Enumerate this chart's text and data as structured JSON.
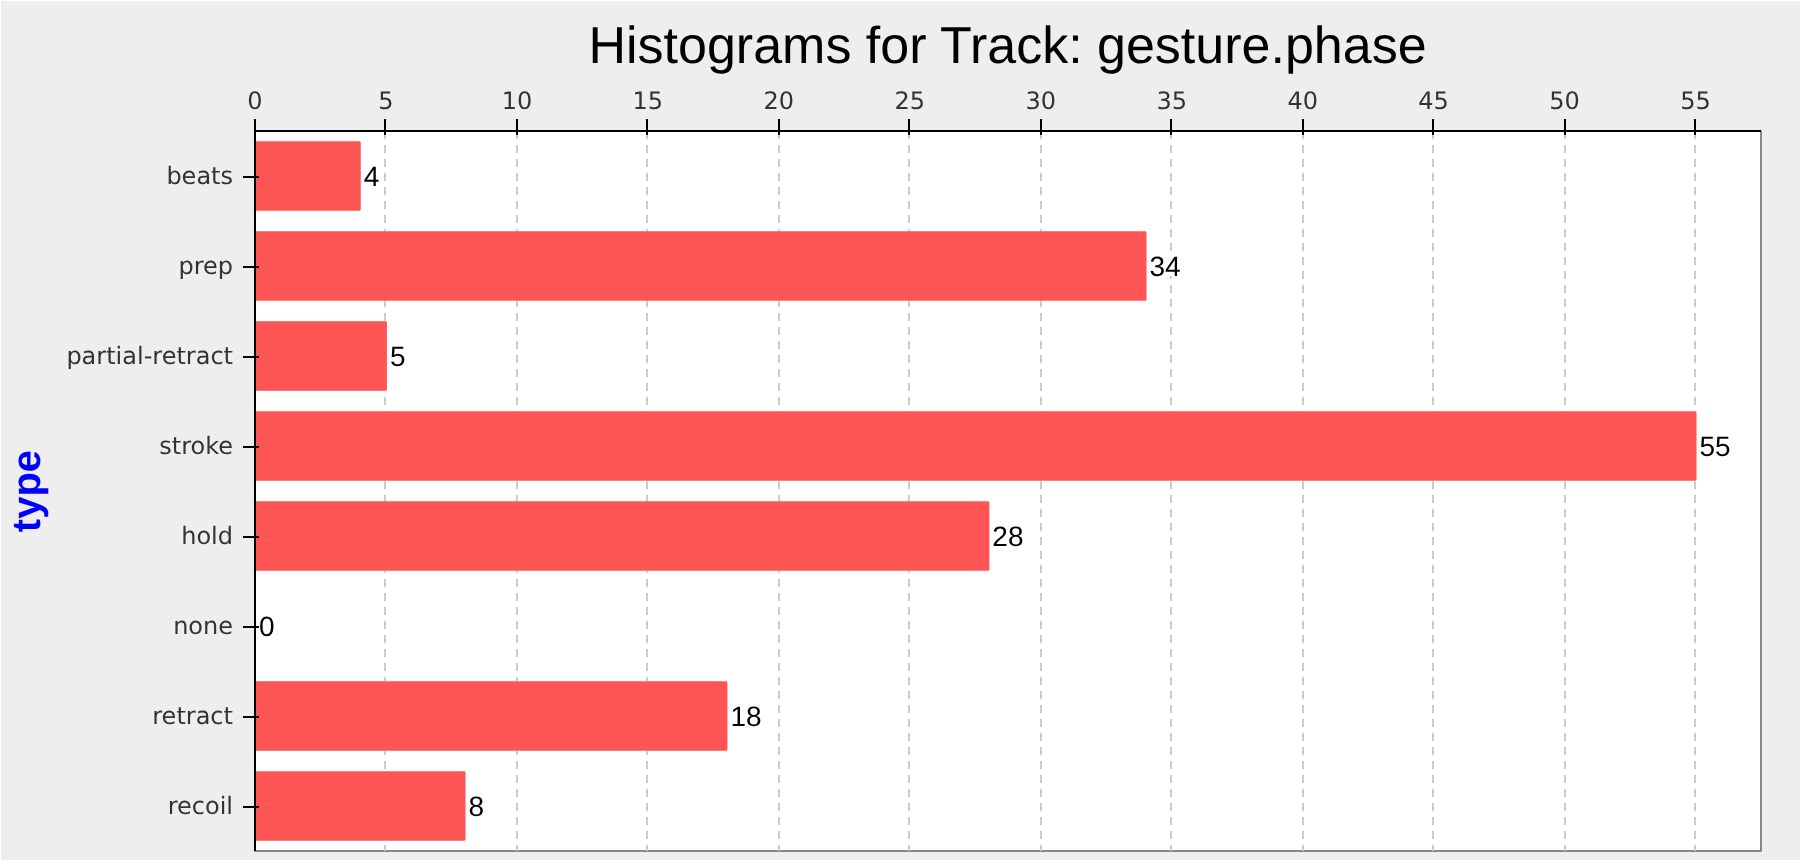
{
  "chart_data": {
    "type": "bar",
    "orientation": "horizontal",
    "title": "Histograms for Track: gesture.phase",
    "ylabel": "type",
    "categories": [
      "beats",
      "prep",
      "partial-retract",
      "stroke",
      "hold",
      "none",
      "retract",
      "recoil"
    ],
    "values": [
      4,
      34,
      5,
      55,
      28,
      0,
      18,
      8
    ],
    "color": "#ff5555",
    "xlim": [
      0,
      57.5
    ],
    "xticks": [
      0,
      5,
      10,
      15,
      20,
      25,
      30,
      35,
      40,
      45,
      50,
      55
    ],
    "grid": "x",
    "data_labels": true
  }
}
